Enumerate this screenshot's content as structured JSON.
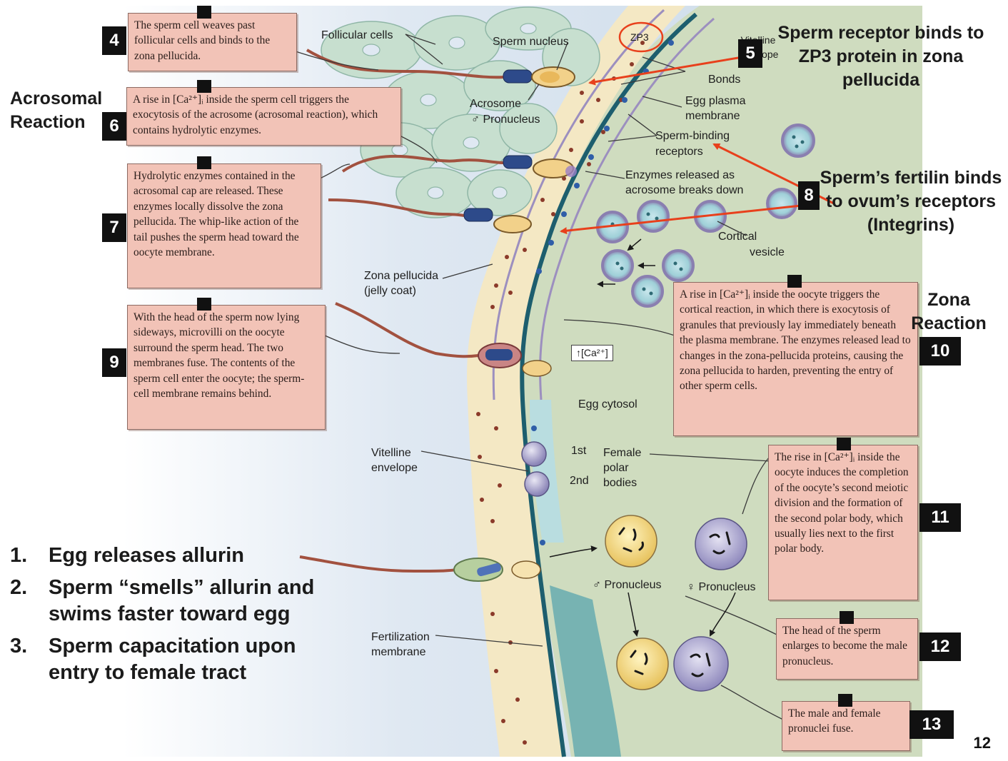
{
  "colors": {
    "caption_fill": "#f2c3b7",
    "caption_border": "#8c6a62",
    "cytosol": "#cfdcbf",
    "zona": "#f4e8c4",
    "membrane": "#1d5e6e",
    "arrow_red": "#e8401c",
    "follicle": "#c7dfcf",
    "vesicle": "#9fd0d8"
  },
  "headings": {
    "acrosomal": "Acrosomal Reaction",
    "zona": "Zona Reaction",
    "zp3_note": "Sperm receptor binds to ZP3 protein in zona pellucida",
    "fertilin_note": "Sperm’s fertilin binds to ovum’s receptors (Integrins)"
  },
  "step_numbers": {
    "s4": "4",
    "s5": "5",
    "s6": "6",
    "s7": "7",
    "s8": "8",
    "s9": "9",
    "s10": "10",
    "s11": "11",
    "s12": "12",
    "s13": "13"
  },
  "captions": {
    "c4": "The sperm cell weaves past follicular cells and binds to the zona pellucida.",
    "c6": "A rise in [Ca²⁺]ᵢ inside the sperm cell triggers the exocytosis of the acrosome (acrosomal reaction), which contains hydrolytic enzymes.",
    "c7": "Hydrolytic enzymes contained in the acrosomal cap are released. These enzymes locally dissolve the zona pellucida. The whip-like action of the tail pushes the sperm head toward the oocyte membrane.",
    "c9": "With the head of the sperm now lying sideways, microvilli on the oocyte surround the sperm head. The two membranes fuse. The contents of the sperm cell enter the oocyte; the sperm-cell membrane remains behind.",
    "c10": "A rise in [Ca²⁺]ᵢ inside the oocyte triggers the cortical reaction, in which there is exocytosis of granules that previously lay immediately beneath the plasma membrane. The enzymes released lead to changes in the zona-pellucida proteins, causing the zona pellucida to harden, preventing the entry of other sperm cells.",
    "c11": "The rise in [Ca²⁺]ᵢ inside the oocyte induces the completion of the oocyte’s second meiotic division and the formation of the second polar body, which usually lies next to the first polar body.",
    "c12": "The head of the sperm enlarges to become the male pronucleus.",
    "c13": "The male and female pronuclei fuse."
  },
  "labels": {
    "follicular_cells": "Follicular cells",
    "sperm_nucleus": "Sperm nucleus",
    "zp3": "ZP3",
    "vitelline_envelope_top": "Vitelline envelope",
    "bonds": "Bonds",
    "egg_plasma_membrane": "Egg plasma membrane",
    "acrosome": "Acrosome",
    "male_pronucleus_top": "♂ Pronucleus",
    "sperm_binding_receptors": "Sperm-binding receptors",
    "enzymes_released": "Enzymes released as acrosome breaks down",
    "cortical_vesicle": "Cortical vesicle",
    "zona_pellucida": "Zona pellucida (jelly coat)",
    "ca_rise": "↑[Ca²⁺]",
    "egg_cytosol": "Egg cytosol",
    "vitelline_envelope": "Vitelline envelope",
    "polar_1st": "1st",
    "polar_2nd": "2nd",
    "female_polar_bodies": "Female polar bodies",
    "male_pronucleus": "♂ Pronucleus",
    "female_pronucleus": "♀ Pronucleus",
    "fertilization_membrane": "Fertilization membrane"
  },
  "list": [
    {
      "n": "1.",
      "t": "Egg releases allurin"
    },
    {
      "n": "2.",
      "t": "Sperm “smells” allurin and swims faster toward egg"
    },
    {
      "n": "3.",
      "t": "Sperm capacitation upon entry to female tract"
    }
  ],
  "page_number": "12"
}
